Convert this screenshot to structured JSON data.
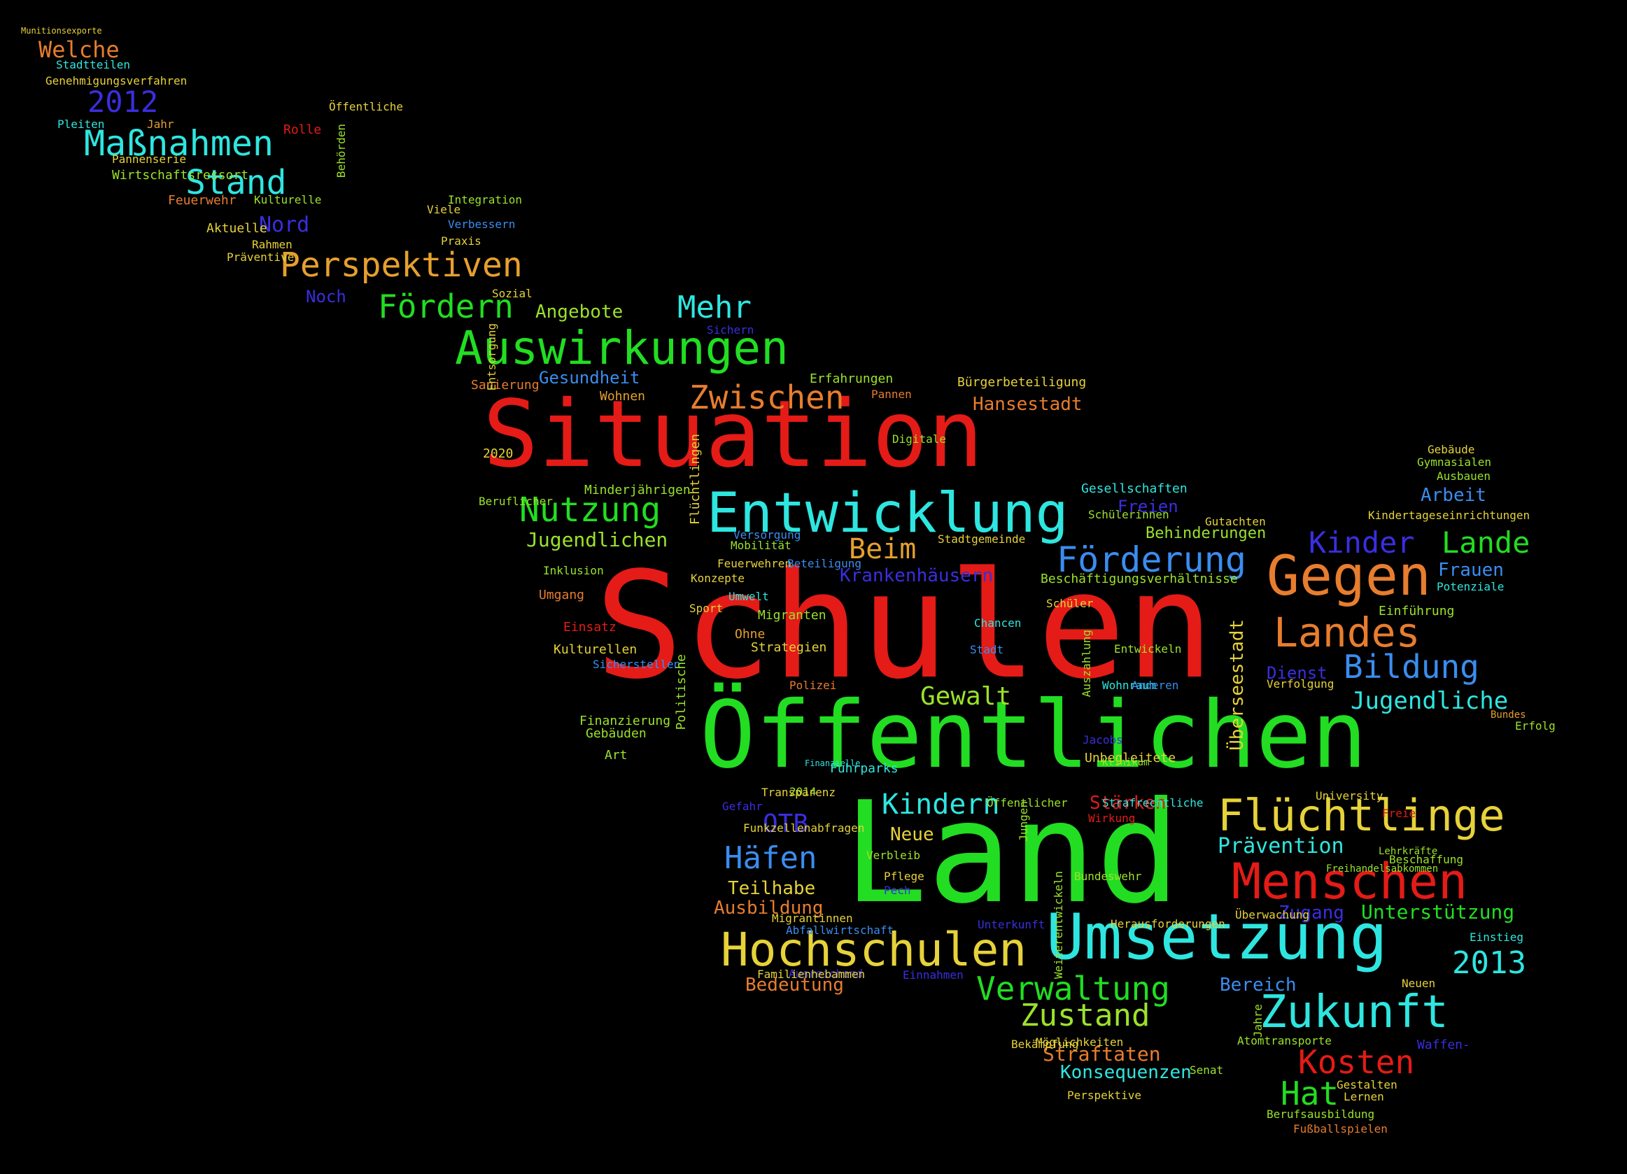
{
  "colors": {
    "background": "#000000",
    "red": "#e41b17",
    "green": "#22dd22",
    "cyan": "#2ee6e0",
    "blue": "#2f3ad6",
    "orange": "#e77d2e",
    "yellow": "#e6d23a",
    "lime": "#9be22a"
  },
  "words": [
    {
      "text": "Schulen",
      "color": "#e41b17",
      "rot": false
    },
    {
      "text": "Land",
      "color": "#22dd22",
      "rot": false
    },
    {
      "text": "Situation",
      "color": "#e41b17",
      "rot": false
    },
    {
      "text": "Öffentlichen",
      "color": "#22dd22",
      "rot": false
    },
    {
      "text": "Entwicklung",
      "color": "#2ee6e0",
      "rot": false
    },
    {
      "text": "Umsetzung",
      "color": "#2ee6e0",
      "rot": false
    },
    {
      "text": "Gegen",
      "color": "#e77d2e",
      "rot": false
    },
    {
      "text": "Hochschulen",
      "color": "#e6d23a",
      "rot": false
    },
    {
      "text": "Menschen",
      "color": "#e41b17",
      "rot": false
    },
    {
      "text": "Flüchtlinge",
      "color": "#e6d23a",
      "rot": false
    },
    {
      "text": "Zukunft",
      "color": "#2ee6e0",
      "rot": false
    },
    {
      "text": "Auswirkungen",
      "color": "#22dd22",
      "rot": false
    },
    {
      "text": "Landes",
      "color": "#e77d2e",
      "rot": false
    },
    {
      "text": "Förderung",
      "color": "#3a8df0",
      "rot": false
    },
    {
      "text": "Maßnahmen",
      "color": "#2ee6e0",
      "rot": false
    },
    {
      "text": "Perspektiven",
      "color": "#e6a02e",
      "rot": false
    },
    {
      "text": "Zwischen",
      "color": "#e77d2e",
      "rot": false
    },
    {
      "text": "Nutzung",
      "color": "#22dd22",
      "rot": false
    },
    {
      "text": "Stand",
      "color": "#2ee6e0",
      "rot": false
    },
    {
      "text": "Fördern",
      "color": "#22dd22",
      "rot": false
    },
    {
      "text": "Kinder",
      "color": "#3a2ee0",
      "rot": false
    },
    {
      "text": "Lande",
      "color": "#22dd22",
      "rot": false
    },
    {
      "text": "Bildung",
      "color": "#3a8df0",
      "rot": false
    },
    {
      "text": "Kindern",
      "color": "#2ee6e0",
      "rot": false
    },
    {
      "text": "Häfen",
      "color": "#3a8df0",
      "rot": false
    },
    {
      "text": "Verwaltung",
      "color": "#22dd22",
      "rot": false
    },
    {
      "text": "Zustand",
      "color": "#9be22a",
      "rot": false
    },
    {
      "text": "Kosten",
      "color": "#e41b17",
      "rot": false
    },
    {
      "text": "Hat",
      "color": "#22dd22",
      "rot": false
    },
    {
      "text": "2013",
      "color": "#2ee6e0",
      "rot": false
    },
    {
      "text": "2012",
      "color": "#3a2ee0",
      "rot": false
    },
    {
      "text": "Mehr",
      "color": "#2ee6e0",
      "rot": false
    },
    {
      "text": "Beim",
      "color": "#e6a02e",
      "rot": false
    },
    {
      "text": "Gewalt",
      "color": "#9be22a",
      "rot": false
    },
    {
      "text": "OTB",
      "color": "#3a2ee0",
      "rot": false
    },
    {
      "text": "Jugendliche",
      "color": "#2ee6e0",
      "rot": false
    },
    {
      "text": "Welche",
      "color": "#e77d2e",
      "rot": false
    },
    {
      "text": "Nord",
      "color": "#3a2ee0",
      "rot": false
    },
    {
      "text": "Jugendlichen",
      "color": "#9be22a",
      "rot": false
    },
    {
      "text": "Hansestadt",
      "color": "#e77d2e",
      "rot": false
    },
    {
      "text": "Prävention",
      "color": "#2ee6e0",
      "rot": false
    },
    {
      "text": "Unterstützung",
      "color": "#22dd22",
      "rot": false
    },
    {
      "text": "Arbeit",
      "color": "#3a8df0",
      "rot": false
    },
    {
      "text": "Frauen",
      "color": "#3a8df0",
      "rot": false
    },
    {
      "text": "Teilhabe",
      "color": "#e6d23a",
      "rot": false
    },
    {
      "text": "Ausbildung",
      "color": "#e77d2e",
      "rot": false
    },
    {
      "text": "Bedeutung",
      "color": "#e77d2e",
      "rot": false
    },
    {
      "text": "Straftaten",
      "color": "#e77d2e",
      "rot": false
    },
    {
      "text": "Konsequenzen",
      "color": "#2ee6e0",
      "rot": false
    },
    {
      "text": "Krankenhäusern",
      "color": "#3a2ee0",
      "rot": false
    },
    {
      "text": "Angebote",
      "color": "#9be22a",
      "rot": false
    },
    {
      "text": "Gesundheit",
      "color": "#3a8df0",
      "rot": false
    },
    {
      "text": "Stärken",
      "color": "#e41b17",
      "rot": false
    },
    {
      "text": "Neue",
      "color": "#e6d23a",
      "rot": false
    },
    {
      "text": "Freien",
      "color": "#3a2ee0",
      "rot": false
    },
    {
      "text": "Behinderungen",
      "color": "#9be22a",
      "rot": false
    },
    {
      "text": "Dienst",
      "color": "#3a2ee0",
      "rot": false
    },
    {
      "text": "Zugang",
      "color": "#3a2ee0",
      "rot": false
    },
    {
      "text": "Bereich",
      "color": "#3a8df0",
      "rot": false
    },
    {
      "text": "Überseestadt",
      "color": "#e6d23a",
      "rot": true
    },
    {
      "text": "Noch",
      "color": "#3a2ee0",
      "rot": false
    },
    {
      "text": "Sanierung",
      "color": "#e77d2e",
      "rot": false
    },
    {
      "text": "Wohnen",
      "color": "#e6a02e",
      "rot": false
    },
    {
      "text": "Bürgerbeteiligung",
      "color": "#e6d23a",
      "rot": false
    },
    {
      "text": "Erfahrungen",
      "color": "#9be22a",
      "rot": false
    },
    {
      "text": "Pannen",
      "color": "#e77d2e",
      "rot": false
    },
    {
      "text": "Digitale",
      "color": "#9be22a",
      "rot": false
    },
    {
      "text": "Gesellschaften",
      "color": "#2ee6e0",
      "rot": false
    },
    {
      "text": "Schülerinnen",
      "color": "#9be22a",
      "rot": false
    },
    {
      "text": "Gutachten",
      "color": "#e6d23a",
      "rot": false
    },
    {
      "text": "Kindertageseinrichtungen",
      "color": "#e6d23a",
      "rot": false
    },
    {
      "text": "Gebäude",
      "color": "#e6d23a",
      "rot": false
    },
    {
      "text": "Gymnasialen",
      "color": "#9be22a",
      "rot": false
    },
    {
      "text": "Ausbauen",
      "color": "#9be22a",
      "rot": false
    },
    {
      "text": "Stadtgemeinde",
      "color": "#e6d23a",
      "rot": false
    },
    {
      "text": "Beschäftigungsverhältnisse",
      "color": "#9be22a",
      "rot": false
    },
    {
      "text": "Schüler",
      "color": "#e6d23a",
      "rot": false
    },
    {
      "text": "Chancen",
      "color": "#2ee6e0",
      "rot": false
    },
    {
      "text": "Stadt",
      "color": "#3a8df0",
      "rot": false
    },
    {
      "text": "Entwickeln",
      "color": "#9be22a",
      "rot": false
    },
    {
      "text": "Wohnraum",
      "color": "#2ee6e0",
      "rot": false
    },
    {
      "text": "Anderen",
      "color": "#3a8df0",
      "rot": false
    },
    {
      "text": "Verfolgung",
      "color": "#e6d23a",
      "rot": false
    },
    {
      "text": "Einführung",
      "color": "#9be22a",
      "rot": false
    },
    {
      "text": "Potenziale",
      "color": "#2ee6e0",
      "rot": false
    },
    {
      "text": "Minderjährigen",
      "color": "#9be22a",
      "rot": false
    },
    {
      "text": "Versorgung",
      "color": "#3a8df0",
      "rot": false
    },
    {
      "text": "Mobilität",
      "color": "#9be22a",
      "rot": false
    },
    {
      "text": "Konzepte",
      "color": "#e6d23a",
      "rot": false
    },
    {
      "text": "Feuerwehren",
      "color": "#e6d23a",
      "rot": false
    },
    {
      "text": "Beteiligung",
      "color": "#3a8df0",
      "rot": false
    },
    {
      "text": "Umwelt",
      "color": "#2ee6e0",
      "rot": false
    },
    {
      "text": "Sport",
      "color": "#e6d23a",
      "rot": false
    },
    {
      "text": "Migranten",
      "color": "#9be22a",
      "rot": false
    },
    {
      "text": "Ohne",
      "color": "#e6a02e",
      "rot": false
    },
    {
      "text": "Strategien",
      "color": "#e6d23a",
      "rot": false
    },
    {
      "text": "Polizei",
      "color": "#e77d2e",
      "rot": false
    },
    {
      "text": "Umgang",
      "color": "#e77d2e",
      "rot": false
    },
    {
      "text": "Inklusion",
      "color": "#9be22a",
      "rot": false
    },
    {
      "text": "Einsatz",
      "color": "#e41b17",
      "rot": false
    },
    {
      "text": "Kulturellen",
      "color": "#e6d23a",
      "rot": false
    },
    {
      "text": "Sicherstellen",
      "color": "#3a8df0",
      "rot": false
    },
    {
      "text": "Finanzierung",
      "color": "#9be22a",
      "rot": false
    },
    {
      "text": "Gebäuden",
      "color": "#9be22a",
      "rot": false
    },
    {
      "text": "Art",
      "color": "#9be22a",
      "rot": false
    },
    {
      "text": "2020",
      "color": "#e6d23a",
      "rot": false
    },
    {
      "text": "Beruflicher",
      "color": "#9be22a",
      "rot": false
    },
    {
      "text": "Sozial",
      "color": "#e6d23a",
      "rot": false
    },
    {
      "text": "Integration",
      "color": "#9be22a",
      "rot": false
    },
    {
      "text": "Viele",
      "color": "#e6d23a",
      "rot": false
    },
    {
      "text": "Verbessern",
      "color": "#3a8df0",
      "rot": false
    },
    {
      "text": "Praxis",
      "color": "#e6d23a",
      "rot": false
    },
    {
      "text": "Präventive",
      "color": "#e6d23a",
      "rot": false
    },
    {
      "text": "Rahmen",
      "color": "#e6d23a",
      "rot": false
    },
    {
      "text": "Aktuelle",
      "color": "#e6d23a",
      "rot": false
    },
    {
      "text": "Feuerwehr",
      "color": "#e77d2e",
      "rot": false
    },
    {
      "text": "Kulturelle",
      "color": "#9be22a",
      "rot": false
    },
    {
      "text": "Wirtschaftsressort",
      "color": "#9be22a",
      "rot": false
    },
    {
      "text": "Pannenserie",
      "color": "#e6d23a",
      "rot": false
    },
    {
      "text": "Pleiten",
      "color": "#2ee6e0",
      "rot": false
    },
    {
      "text": "Jahr",
      "color": "#e6a02e",
      "rot": false
    },
    {
      "text": "Rolle",
      "color": "#e41b17",
      "rot": false
    },
    {
      "text": "Behörden",
      "color": "#9be22a",
      "rot": true
    },
    {
      "text": "Öffentliche",
      "color": "#e6d23a",
      "rot": false
    },
    {
      "text": "Stadtteilen",
      "color": "#2ee6e0",
      "rot": false
    },
    {
      "text": "Genehmigungsverfahren",
      "color": "#e6d23a",
      "rot": false
    },
    {
      "text": "Munitionsexporte",
      "color": "#e6d23a",
      "rot": false
    },
    {
      "text": "Sichern",
      "color": "#3a2ee0",
      "rot": false
    },
    {
      "text": "Entsorgung",
      "color": "#e6d23a",
      "rot": true
    },
    {
      "text": "Flüchtlingen",
      "color": "#e6d23a",
      "rot": true
    },
    {
      "text": "Politische",
      "color": "#9be22a",
      "rot": true
    },
    {
      "text": "Jungen",
      "color": "#9be22a",
      "rot": true
    },
    {
      "text": "Weiterentwickeln",
      "color": "#9be22a",
      "rot": true
    },
    {
      "text": "Auszahlung",
      "color": "#9be22a",
      "rot": true
    },
    {
      "text": "Fuhrparks",
      "color": "#2ee6e0",
      "rot": false
    },
    {
      "text": "Finanzielle",
      "color": "#2ee6e0",
      "rot": false
    },
    {
      "text": "2014",
      "color": "#9be22a",
      "rot": false
    },
    {
      "text": "Transparenz",
      "color": "#e6d23a",
      "rot": false
    },
    {
      "text": "Gefahr",
      "color": "#3a2ee0",
      "rot": false
    },
    {
      "text": "Funkzellenabfragen",
      "color": "#e6d23a",
      "rot": false
    },
    {
      "text": "Verbleib",
      "color": "#9be22a",
      "rot": false
    },
    {
      "text": "Pflege",
      "color": "#e6d23a",
      "rot": false
    },
    {
      "text": "Pech",
      "color": "#3a2ee0",
      "rot": false
    },
    {
      "text": "Bundeswehr",
      "color": "#9be22a",
      "rot": false
    },
    {
      "text": "Migrantinnen",
      "color": "#e6d23a",
      "rot": false
    },
    {
      "text": "Abfallwirtschaft",
      "color": "#3a8df0",
      "rot": false
    },
    {
      "text": "Ausreichend",
      "color": "#3a2ee0",
      "rot": false
    },
    {
      "text": "Einnahmen",
      "color": "#3a2ee0",
      "rot": false
    },
    {
      "text": "Unterkunft",
      "color": "#3a2ee0",
      "rot": false
    },
    {
      "text": "Familienhebammen",
      "color": "#e6d23a",
      "rot": false
    },
    {
      "text": "Herausforderungen",
      "color": "#e6d23a",
      "rot": false
    },
    {
      "text": "Öffentlicher",
      "color": "#9be22a",
      "rot": false
    },
    {
      "text": "Wirkung",
      "color": "#e41b17",
      "rot": false
    },
    {
      "text": "Unbegleitete",
      "color": "#e6d23a",
      "rot": false
    },
    {
      "text": "Jacobs",
      "color": "#3a2ee0",
      "rot": false
    },
    {
      "text": "Klinikum",
      "color": "#9be22a",
      "rot": false
    },
    {
      "text": "Strafrechtliche",
      "color": "#2ee6e0",
      "rot": false
    },
    {
      "text": "University",
      "color": "#e6d23a",
      "rot": false
    },
    {
      "text": "Freie",
      "color": "#e41b17",
      "rot": false
    },
    {
      "text": "Überwachung",
      "color": "#e6d23a",
      "rot": false
    },
    {
      "text": "Einstieg",
      "color": "#2ee6e0",
      "rot": false
    },
    {
      "text": "Neuen",
      "color": "#e6d23a",
      "rot": false
    },
    {
      "text": "Lehrkräfte",
      "color": "#9be22a",
      "rot": false
    },
    {
      "text": "Beschaffung",
      "color": "#9be22a",
      "rot": false
    },
    {
      "text": "Freihandelsabkommen",
      "color": "#9be22a",
      "rot": false
    },
    {
      "text": "Atomtransporte",
      "color": "#9be22a",
      "rot": false
    },
    {
      "text": "Möglichkeiten",
      "color": "#e6d23a",
      "rot": false
    },
    {
      "text": "Bekämpfung",
      "color": "#e6d23a",
      "rot": false
    },
    {
      "text": "Waffen-",
      "color": "#3a2ee0",
      "rot": false
    },
    {
      "text": "Senat",
      "color": "#9be22a",
      "rot": false
    },
    {
      "text": "Perspektive",
      "color": "#e6d23a",
      "rot": false
    },
    {
      "text": "Gestalten",
      "color": "#e6d23a",
      "rot": false
    },
    {
      "text": "Lernen",
      "color": "#e6d23a",
      "rot": false
    },
    {
      "text": "Berufsausbildung",
      "color": "#9be22a",
      "rot": false
    },
    {
      "text": "Fußballspielen",
      "color": "#e77d2e",
      "rot": false
    },
    {
      "text": "Erfolg",
      "color": "#9be22a",
      "rot": false
    },
    {
      "text": "Bundes",
      "color": "#e6a02e",
      "rot": false
    },
    {
      "text": "Jahre",
      "color": "#9be22a",
      "rot": true
    }
  ]
}
